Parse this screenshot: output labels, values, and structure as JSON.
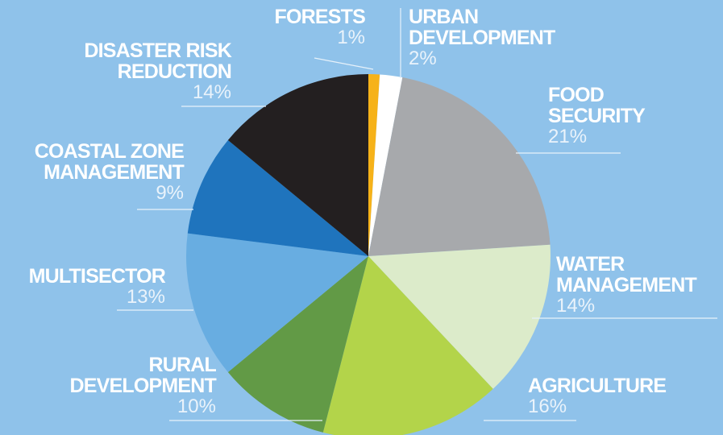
{
  "chart_data": {
    "type": "pie",
    "categories": [
      "FORESTS",
      "URBAN\nDEVELOPMENT",
      "FOOD\nSECURITY",
      "WATER\nMANAGEMENT",
      "AGRICULTURE",
      "RURAL\nDEVELOPMENT",
      "MULTISECTOR",
      "COASTAL ZONE\nMANAGEMENT",
      "DISASTER RISK\nREDUCTION"
    ],
    "values": [
      1,
      2,
      21,
      14,
      16,
      10,
      13,
      9,
      14
    ],
    "value_labels": [
      "1%",
      "2%",
      "21%",
      "14%",
      "16%",
      "10%",
      "13%",
      "9%",
      "14%"
    ],
    "colors": [
      "#f6b219",
      "#ffffff",
      "#a7a9ac",
      "#dcebca",
      "#b3d44a",
      "#629a46",
      "#68ade1",
      "#1f74bd",
      "#231f20"
    ]
  }
}
